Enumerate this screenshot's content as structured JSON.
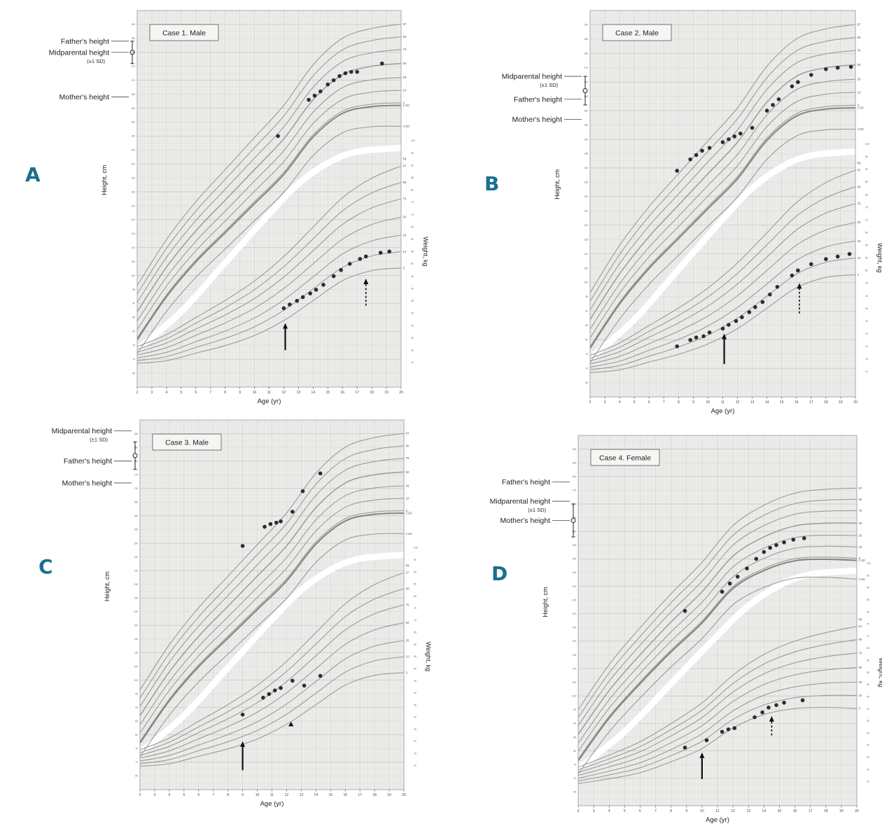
{
  "figure": {
    "plot_bg": "#ebebe9",
    "grid_minor": "#e1e1df",
    "grid_mid": "#d3d3d1",
    "grid_major": "#c3c3c1",
    "curve_color": "#9a9a98",
    "curve_em_color": "#868684",
    "dot_color": "#2d2d2d",
    "band_color": "#ffffff",
    "letter_color": "#1a6f8f",
    "text_color": "#333333",
    "border_color": "#9a9a9a"
  },
  "chart_data": {
    "type": "line",
    "description": "Height-for-age and weight-for-age growth charts for four cases",
    "axes": {
      "x_label": "Age (yr)",
      "y_left_label": "Height, cm",
      "y_right_label": "Weight, kg",
      "right_unit": "kg",
      "age_min": 2,
      "age_max": 20,
      "height_axis": {
        "min": 60,
        "max": 195,
        "tick_min": 65,
        "tick_max": 190,
        "tick_step": 5
      },
      "weight_axis": {
        "max": 110,
        "frac": 0.72,
        "tick_min": 10,
        "tick_max": 100,
        "tick_step": 5
      }
    },
    "model": {
      "ages": [
        2,
        4,
        6,
        8,
        10,
        12,
        14,
        16,
        18,
        20
      ],
      "height_p50": {
        "male": [
          87,
          103,
          116,
          127,
          138,
          149,
          163,
          172,
          175,
          176
        ],
        "female": [
          86,
          102,
          115,
          127,
          138,
          151,
          158,
          162,
          163,
          163
        ]
      },
      "height_sd": {
        "male": {
          "start": 5.0,
          "end": 7.5
        },
        "female": {
          "start": 4.8,
          "end": 6.8
        }
      },
      "weight_p50": {
        "male": [
          13,
          16,
          21,
          26,
          32,
          40,
          50,
          60,
          66,
          69
        ],
        "female": [
          12.5,
          16,
          20,
          26,
          33,
          43,
          50,
          54,
          56,
          57
        ]
      },
      "weight_sd": {
        "male": {
          "start": 1.8,
          "end": 11
        },
        "female": {
          "start": 1.8,
          "end": 9
        }
      },
      "height_percentiles": [
        {
          "label": "97",
          "z": 1.88,
          "em": false
        },
        {
          "label": "90",
          "z": 1.28,
          "em": false
        },
        {
          "label": "75",
          "z": 0.67,
          "em": false
        },
        {
          "label": "50",
          "z": 0.0,
          "em": false
        },
        {
          "label": "25",
          "z": -0.67,
          "em": false
        },
        {
          "label": "10",
          "z": -1.28,
          "em": false
        },
        {
          "label": "3",
          "z": -1.88,
          "em": false
        },
        {
          "label": "2 SD",
          "z": -2.0,
          "em": true
        },
        {
          "label": "3 SD",
          "z": -3.0,
          "em": false
        }
      ],
      "weight_percentiles": [
        {
          "label": "97",
          "z": 1.88,
          "em": false
        },
        {
          "label": "90",
          "z": 1.28,
          "em": false
        },
        {
          "label": "75",
          "z": 0.67,
          "em": false
        },
        {
          "label": "50",
          "z": 0.0,
          "em": false
        },
        {
          "label": "25",
          "z": -0.67,
          "em": false
        },
        {
          "label": "10",
          "z": -1.28,
          "em": false
        },
        {
          "label": "3",
          "z": -1.88,
          "em": false
        }
      ],
      "white_band": [
        [
          2,
          0.9
        ],
        [
          5,
          0.8
        ],
        [
          8,
          0.67
        ],
        [
          11,
          0.54
        ],
        [
          13,
          0.46
        ],
        [
          15,
          0.405
        ],
        [
          17,
          0.375
        ],
        [
          20,
          0.365
        ]
      ]
    },
    "panels": [
      {
        "id": "a",
        "letter": "A",
        "title": "Case 1. Male",
        "sex": "male",
        "annotations": {
          "marker": {
            "center": 180,
            "sd": 4
          },
          "entries": [
            {
              "label": "Father's height",
              "cm": 184
            },
            {
              "label": "Midparental height",
              "sublabel": "(±1 SD)",
              "cm": 180
            },
            {
              "label": "Mother's height",
              "cm": 164
            }
          ]
        },
        "height_points": [
          [
            11.6,
            150
          ],
          [
            13.7,
            163
          ],
          [
            14.1,
            164.5
          ],
          [
            14.5,
            166
          ],
          [
            15.0,
            168.5
          ],
          [
            15.4,
            170
          ],
          [
            15.8,
            171.5
          ],
          [
            16.2,
            172.5
          ],
          [
            16.6,
            173
          ],
          [
            17.0,
            173
          ],
          [
            18.7,
            176
          ]
        ],
        "weight_points": [
          [
            12.0,
            32
          ],
          [
            12.4,
            33.5
          ],
          [
            12.9,
            35
          ],
          [
            13.3,
            36.5
          ],
          [
            13.8,
            38
          ],
          [
            14.2,
            39.5
          ],
          [
            14.7,
            41.5
          ],
          [
            15.4,
            45
          ],
          [
            15.9,
            47.5
          ],
          [
            16.5,
            50
          ],
          [
            17.2,
            52
          ],
          [
            17.6,
            53
          ],
          [
            18.6,
            54.5
          ],
          [
            19.2,
            55
          ]
        ],
        "arrows": [
          {
            "age": 12.1,
            "head_kg": 26,
            "tail_kg": 15,
            "dashed": false
          },
          {
            "age": 17.6,
            "head_kg": 44,
            "tail_kg": 33,
            "dashed": true
          }
        ]
      },
      {
        "id": "b",
        "letter": "B",
        "title": "Case 2. Male",
        "sex": "male",
        "annotations": {
          "marker": {
            "center": 167,
            "sd": 5
          },
          "entries": [
            {
              "label": "Midparental height",
              "sublabel": "(±1 SD)",
              "cm": 172
            },
            {
              "label": "Father's height",
              "cm": 164
            },
            {
              "label": "Mother's height",
              "cm": 157
            }
          ]
        },
        "height_points": [
          [
            7.9,
            139
          ],
          [
            8.8,
            143
          ],
          [
            9.2,
            144.5
          ],
          [
            9.6,
            146
          ],
          [
            10.1,
            147
          ],
          [
            11.0,
            149
          ],
          [
            11.4,
            150
          ],
          [
            11.8,
            151
          ],
          [
            12.2,
            152
          ],
          [
            13.0,
            154
          ],
          [
            14.0,
            160
          ],
          [
            14.4,
            162
          ],
          [
            14.8,
            164
          ],
          [
            15.7,
            168.5
          ],
          [
            16.1,
            170
          ],
          [
            17.0,
            172.5
          ],
          [
            18.0,
            174.5
          ],
          [
            18.8,
            175
          ],
          [
            19.7,
            175.3
          ]
        ],
        "weight_points": [
          [
            7.9,
            20
          ],
          [
            8.8,
            22.5
          ],
          [
            9.2,
            23.5
          ],
          [
            9.7,
            24
          ],
          [
            10.1,
            25.5
          ],
          [
            11.0,
            27
          ],
          [
            11.4,
            28.5
          ],
          [
            11.9,
            30
          ],
          [
            12.3,
            31.5
          ],
          [
            12.8,
            33.5
          ],
          [
            13.2,
            35.5
          ],
          [
            13.7,
            37.5
          ],
          [
            14.2,
            40.5
          ],
          [
            14.7,
            43.5
          ],
          [
            15.7,
            48
          ],
          [
            16.1,
            50
          ],
          [
            17.0,
            52.5
          ],
          [
            18.0,
            54.5
          ],
          [
            18.8,
            55.5
          ],
          [
            19.6,
            56.5
          ]
        ],
        "arrows": [
          {
            "age": 11.1,
            "head_kg": 25,
            "tail_kg": 13,
            "dashed": false
          },
          {
            "age": 16.2,
            "head_kg": 45,
            "tail_kg": 33,
            "dashed": true
          }
        ]
      },
      {
        "id": "c",
        "letter": "C",
        "title": "Case 3. Male",
        "sex": "male",
        "annotations": {
          "marker": {
            "center": 182,
            "sd": 5
          },
          "entries": [
            {
              "label": "Midparental height",
              "sublabel": "(±1 SD)",
              "cm": 191
            },
            {
              "label": "Father's height",
              "cm": 180
            },
            {
              "label": "Mother's height",
              "cm": 172
            }
          ]
        },
        "height_points": [
          [
            9.0,
            149
          ],
          [
            10.5,
            156
          ],
          [
            10.9,
            157
          ],
          [
            11.3,
            157.5
          ],
          [
            11.6,
            158
          ],
          [
            12.4,
            161.5
          ],
          [
            13.1,
            169
          ],
          [
            14.3,
            175.5
          ]
        ],
        "weight_points": [
          [
            9.0,
            31
          ],
          [
            10.4,
            38
          ],
          [
            10.8,
            39.5
          ],
          [
            11.2,
            41
          ],
          [
            11.6,
            42
          ],
          [
            12.4,
            45
          ],
          [
            13.2,
            43
          ],
          [
            14.3,
            47
          ]
        ],
        "triangle_point": [
          12.3,
          27
        ],
        "arrows": [
          {
            "age": 9.0,
            "head_kg": 20,
            "tail_kg": 8,
            "dashed": false
          }
        ]
      },
      {
        "id": "d",
        "letter": "D",
        "title": "Case 4. Female",
        "sex": "female",
        "annotations": {
          "marker": {
            "center": 164,
            "sd": 6
          },
          "entries": [
            {
              "label": "Father's height",
              "cm": 178
            },
            {
              "label": "Midparental height",
              "sublabel": "(±1 SD)",
              "cm": 171
            },
            {
              "label": "Mother's height",
              "cm": 164
            }
          ]
        },
        "height_points": [
          [
            8.9,
            131
          ],
          [
            11.3,
            138
          ],
          [
            11.8,
            141
          ],
          [
            12.3,
            143.5
          ],
          [
            12.9,
            146.5
          ],
          [
            13.5,
            150
          ],
          [
            14.0,
            152.5
          ],
          [
            14.4,
            154
          ],
          [
            14.8,
            155
          ],
          [
            15.3,
            156
          ],
          [
            15.9,
            157
          ],
          [
            16.6,
            157.5
          ]
        ],
        "weight_points": [
          [
            8.9,
            24
          ],
          [
            10.3,
            27
          ],
          [
            11.3,
            30.5
          ],
          [
            11.7,
            31.5
          ],
          [
            12.1,
            32
          ],
          [
            13.4,
            36.5
          ],
          [
            13.9,
            38.5
          ],
          [
            14.3,
            40.5
          ],
          [
            14.8,
            41.5
          ],
          [
            15.3,
            42.5
          ],
          [
            16.5,
            43.5
          ]
        ],
        "arrows": [
          {
            "age": 10.0,
            "head_kg": 22,
            "tail_kg": 11,
            "dashed": false
          },
          {
            "age": 14.5,
            "head_kg": 37,
            "tail_kg": 29,
            "dashed": true
          }
        ]
      }
    ]
  }
}
